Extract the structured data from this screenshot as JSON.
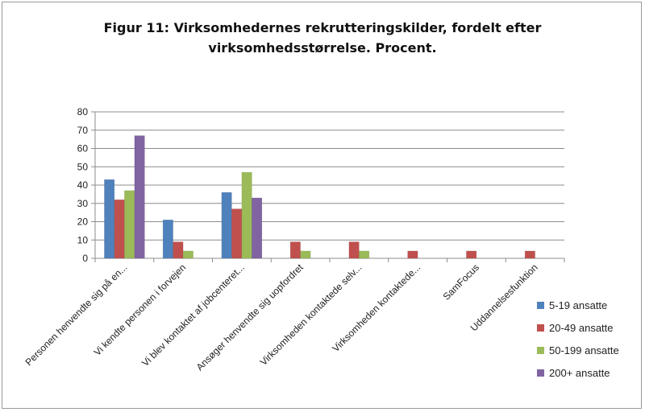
{
  "chart_data": {
    "type": "bar",
    "title_lines": [
      "Figur 11: Virksomhedernes rekrutteringskilder, fordelt efter",
      "virksomhedsstørrelse. Procent."
    ],
    "categories": [
      "Personen henvendte sig på en...",
      "Vi kendte personen i forvejen",
      "Vi blev kontaktet af jobcenteret...",
      "Ansøger henvendte sig uopfordret",
      "Virksomheden kontaktede selv...",
      "Virksomheden kontaktede...",
      "SamFocus",
      "Uddannelsesfunktion"
    ],
    "series": [
      {
        "name": "5-19 ansatte",
        "color": "#4f81bd",
        "values": [
          43,
          21,
          36,
          0,
          0,
          0,
          0,
          0
        ]
      },
      {
        "name": "20-49 ansatte",
        "color": "#c0504d",
        "values": [
          32,
          9,
          27,
          9,
          9,
          4,
          4,
          4
        ]
      },
      {
        "name": "50-199 ansatte",
        "color": "#9bbb59",
        "values": [
          37,
          4,
          47,
          4,
          4,
          0,
          0,
          0
        ]
      },
      {
        "name": "200+ ansatte",
        "color": "#8064a2",
        "values": [
          67,
          0,
          33,
          0,
          0,
          0,
          0,
          0
        ]
      }
    ],
    "ylim": [
      0,
      80
    ],
    "yticks": [
      "0",
      "10",
      "20",
      "30",
      "40",
      "50",
      "60",
      "70",
      "80"
    ],
    "grid": true,
    "legend_position": "right"
  }
}
